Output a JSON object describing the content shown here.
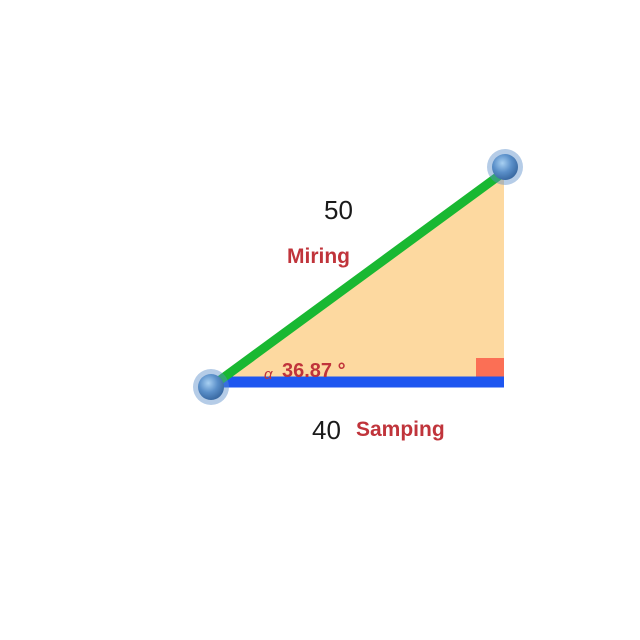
{
  "triangle": {
    "hypotenuse": {
      "value": "50",
      "name": "Miring"
    },
    "adjacent": {
      "value": "40",
      "name": "Samping"
    },
    "angle": {
      "symbol": "α",
      "value": "36.87 °"
    }
  },
  "colors": {
    "fill": "#fdd9a0",
    "hypotenuse_line": "#19b832",
    "base_line": "#1e56f0",
    "right_angle_marker": "#fb6f55",
    "handle": "#5a8fc9",
    "label_text": "#c0343b"
  }
}
